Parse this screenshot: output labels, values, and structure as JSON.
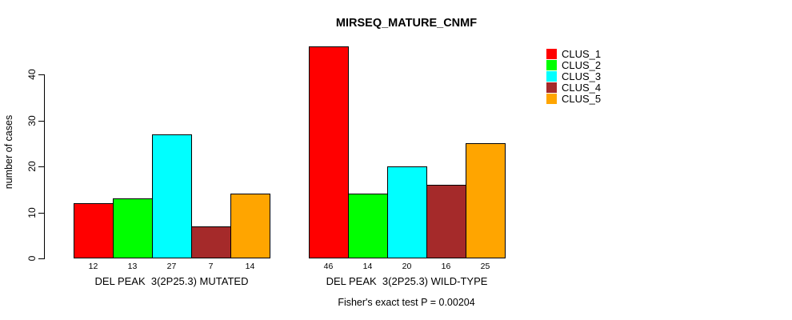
{
  "page": {
    "background_color": "#FFFFFF",
    "text_color": "#000000"
  },
  "chart_data": {
    "type": "bar",
    "title": "MIRSEQ_MATURE_CNMF",
    "ylabel": "number of cases",
    "xlabel": "",
    "ylim": [
      0,
      46
    ],
    "yticks": [
      0,
      10,
      20,
      30,
      40
    ],
    "grid": false,
    "legend_position": "right",
    "series": [
      {
        "name": "CLUS_1",
        "color": "#FF0000"
      },
      {
        "name": "CLUS_2",
        "color": "#00FF00"
      },
      {
        "name": "CLUS_3",
        "color": "#00FFFF"
      },
      {
        "name": "CLUS_4",
        "color": "#A52A2A"
      },
      {
        "name": "CLUS_5",
        "color": "#FFA500"
      }
    ],
    "groups": [
      {
        "label": "DEL PEAK  3(2P25.3) MUTATED",
        "values": [
          12,
          13,
          27,
          7,
          14
        ]
      },
      {
        "label": "DEL PEAK  3(2P25.3) WILD-TYPE",
        "values": [
          46,
          14,
          20,
          16,
          25
        ]
      }
    ],
    "bar_value_labels_shown": true,
    "annotation": "Fisher's exact test P = 0.00204"
  }
}
